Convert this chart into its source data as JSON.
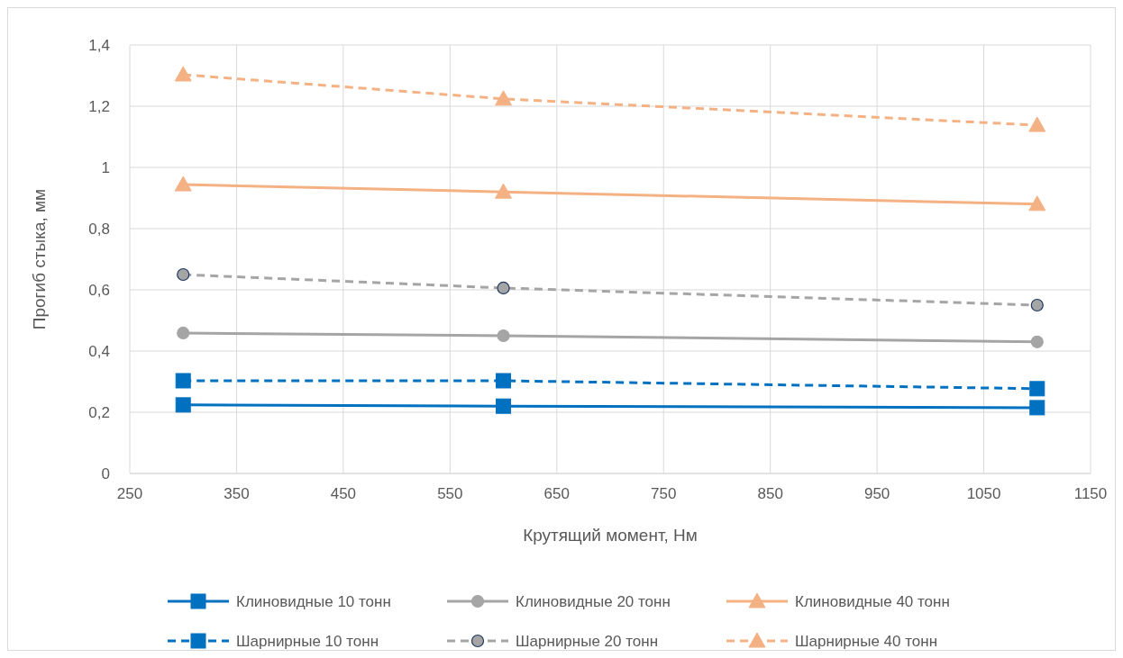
{
  "chart_data": {
    "type": "line",
    "xlabel": "Крутящий момент, Нм",
    "ylabel": "Прогиб стыка, мм",
    "x": [
      300,
      600,
      1100
    ],
    "xlim": [
      250,
      1150
    ],
    "xticks": [
      250,
      350,
      450,
      550,
      650,
      750,
      850,
      950,
      1050,
      1150
    ],
    "ylim": [
      0,
      1.4
    ],
    "yticks": [
      {
        "value": 0,
        "label": "0"
      },
      {
        "value": 0.2,
        "label": "0,2"
      },
      {
        "value": 0.4,
        "label": "0,4"
      },
      {
        "value": 0.6,
        "label": "0,6"
      },
      {
        "value": 0.8,
        "label": "0,8"
      },
      {
        "value": 1,
        "label": "1"
      },
      {
        "value": 1.2,
        "label": "1,2"
      },
      {
        "value": 1.4,
        "label": "1,4"
      }
    ],
    "grid": true,
    "legend": "bottom",
    "series": [
      {
        "name": "Клиновидные 10 тонн",
        "color": "#0070c0",
        "marker": "square",
        "line_style": "solid",
        "values": [
          0.224,
          0.22,
          0.215
        ]
      },
      {
        "name": "Клиновидные 20 тонн",
        "color": "#a5a5a5",
        "marker": "circle",
        "line_style": "solid",
        "values": [
          0.459,
          0.45,
          0.43
        ]
      },
      {
        "name": "Клиновидные 40 тонн",
        "color": "#f4b183",
        "marker": "triangle",
        "line_style": "solid",
        "values": [
          0.944,
          0.92,
          0.88
        ]
      },
      {
        "name": "Шарнирные 10 тонн",
        "color": "#0070c0",
        "marker": "square",
        "line_style": "dashed",
        "values": [
          0.303,
          0.303,
          0.277
        ]
      },
      {
        "name": "Шарнирные 20 тонн",
        "color": "#a5a5a5",
        "marker": "circle",
        "line_style": "dashed",
        "values": [
          0.65,
          0.606,
          0.55
        ]
      },
      {
        "name": "Шарнирные 40 тонн",
        "color": "#f4b183",
        "marker": "triangle",
        "line_style": "dashed",
        "values": [
          1.303,
          1.224,
          1.138
        ]
      }
    ]
  }
}
